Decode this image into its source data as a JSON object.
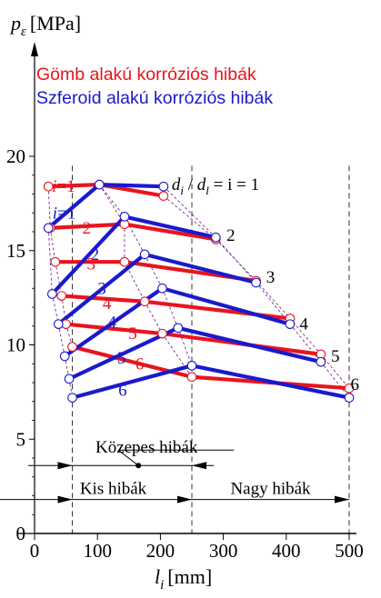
{
  "chart_data": {
    "type": "line",
    "ylabel_symbol": "p",
    "ylabel_sub": "ε",
    "ylabel_unit": "[MPa]",
    "xlabel_symbol": "l",
    "xlabel_sub": "i",
    "xlabel_unit": "[mm]",
    "xlim": [
      0,
      520
    ],
    "ylim": [
      0,
      21
    ],
    "xticks": [
      0,
      100,
      200,
      300,
      400,
      500
    ],
    "yticks": [
      0,
      5,
      10,
      15,
      20
    ],
    "legend_placement": "top-left",
    "legend": [
      {
        "text": "Gömb alakú korróziós hibák",
        "color": "#e8141e"
      },
      {
        "text": "Szferoid alakú korróziós hibák",
        "color": "#1a1acc"
      }
    ],
    "series": [
      {
        "name": "Gömb alakú korróziós hibák",
        "color": "#e8141e",
        "lines": [
          {
            "i": 1,
            "x": [
              22,
              103,
              205
            ],
            "y": [
              18.4,
              18.5,
              17.9
            ]
          },
          {
            "i": 2,
            "x": [
              25,
              143,
              288
            ],
            "y": [
              16.2,
              16.4,
              15.6
            ]
          },
          {
            "i": 3,
            "x": [
              33,
              143,
              352
            ],
            "y": [
              14.4,
              14.4,
              13.4
            ]
          },
          {
            "i": 4,
            "x": [
              43,
              175,
              406
            ],
            "y": [
              12.6,
              12.3,
              11.4
            ]
          },
          {
            "i": 5,
            "x": [
              50,
              203,
              455
            ],
            "y": [
              11.1,
              10.6,
              9.5
            ]
          },
          {
            "i": 6,
            "x": [
              60,
              250,
              500
            ],
            "y": [
              9.9,
              8.3,
              7.7
            ]
          }
        ]
      },
      {
        "name": "Szferoid alakú korróziós hibák",
        "color": "#1a1acc",
        "lines": [
          {
            "i": 1,
            "x": [
              22,
              103,
              205
            ],
            "y": [
              16.2,
              18.5,
              18.4
            ]
          },
          {
            "i": 2,
            "x": [
              28,
              143,
              288
            ],
            "y": [
              12.7,
              16.8,
              15.7
            ]
          },
          {
            "i": 3,
            "x": [
              38,
              175,
              352
            ],
            "y": [
              11.1,
              14.8,
              13.3
            ]
          },
          {
            "i": 4,
            "x": [
              48,
              203,
              406
            ],
            "y": [
              9.4,
              13.0,
              11.1
            ]
          },
          {
            "i": 5,
            "x": [
              55,
              228,
              455
            ],
            "y": [
              8.2,
              10.9,
              9.1
            ]
          },
          {
            "i": 6,
            "x": [
              60,
              250,
              500
            ],
            "y": [
              7.2,
              8.9,
              7.2
            ]
          }
        ]
      }
    ],
    "envelope_color": "#7a2f8f",
    "vertical_dashed_x": [
      60,
      250,
      500
    ],
    "line_labels": [
      {
        "text": "i=1",
        "color": "#e8141e",
        "x": 46,
        "y": 18.4
      },
      {
        "text": "i=1",
        "color": "#1a1acc",
        "x": 47,
        "y": 17.0
      },
      {
        "text": "2",
        "color": "#e8141e",
        "x": 83,
        "y": 16.2
      },
      {
        "text": "2",
        "color": "#1a1acc",
        "x": 96,
        "y": 14.8
      },
      {
        "text": "3",
        "color": "#e8141e",
        "x": 90,
        "y": 14.3
      },
      {
        "text": "3",
        "color": "#1a1acc",
        "x": 107,
        "y": 13.0
      },
      {
        "text": "4",
        "color": "#e8141e",
        "x": 115,
        "y": 12.2
      },
      {
        "text": "4",
        "color": "#1a1acc",
        "x": 123,
        "y": 11.2
      },
      {
        "text": "5",
        "color": "#e8141e",
        "x": 156,
        "y": 10.6
      },
      {
        "text": "5",
        "color": "#1a1acc",
        "x": 138,
        "y": 9.3
      },
      {
        "text": "6",
        "color": "#e8141e",
        "x": 167,
        "y": 9.0
      },
      {
        "text": "6",
        "color": "#1a1acc",
        "x": 140,
        "y": 7.6
      },
      {
        "text": "2",
        "color": "#000000",
        "x": 312,
        "y": 15.8
      },
      {
        "text": "3",
        "color": "#000000",
        "x": 375,
        "y": 13.6
      },
      {
        "text": "4",
        "color": "#000000",
        "x": 428,
        "y": 11.1
      },
      {
        "text": "5",
        "color": "#000000",
        "x": 478,
        "y": 9.4
      },
      {
        "text": "6",
        "color": "#000000",
        "x": 509,
        "y": 7.9
      }
    ],
    "ratio_label": {
      "d": "d",
      "i_sub": "i",
      "slash": " / ",
      "l_sub": "l",
      "rest": " = i = 1",
      "x": 218,
      "y": 18.5
    },
    "ranges": [
      {
        "label": "Közepes hibák",
        "from": 60,
        "to": 250,
        "y": 3.6,
        "label_x": 178,
        "label_y": 4.3,
        "marker_x": 165
      },
      {
        "label": "Kis hibák",
        "from": 0,
        "to": 60,
        "y": 1.8,
        "label_x": 125,
        "label_y": 2.1
      },
      {
        "label": "Nagy hibák",
        "from": 250,
        "to": 500,
        "y": 1.8,
        "label_x": 375,
        "label_y": 2.1
      }
    ]
  }
}
